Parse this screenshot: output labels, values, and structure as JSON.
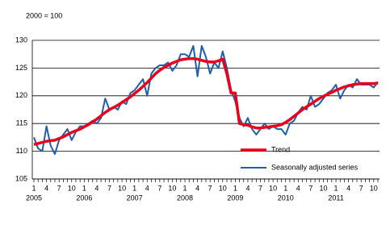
{
  "chart_data": {
    "type": "line",
    "annotation": "2000 = 100",
    "categories": [
      "1",
      null,
      null,
      "4",
      null,
      null,
      "7",
      null,
      null,
      "10",
      null,
      null,
      "1",
      null,
      null,
      "4",
      null,
      null,
      "7",
      null,
      null,
      "10",
      null,
      null,
      "1",
      null,
      null,
      "4",
      null,
      null,
      "7",
      null,
      null,
      "10",
      null,
      null,
      "1",
      null,
      null,
      "4",
      null,
      null,
      "7",
      null,
      null,
      "10",
      null,
      null,
      "1",
      null,
      null,
      "4",
      null,
      null,
      "7",
      null,
      null,
      "10",
      null,
      null,
      "1",
      null,
      null,
      "4",
      null,
      null,
      "7",
      null,
      null,
      "10",
      null,
      null,
      "1",
      null,
      null,
      "4",
      null,
      null,
      "7",
      null,
      null,
      "10",
      null
    ],
    "category_years": [
      "2005",
      null,
      null,
      null,
      null,
      null,
      null,
      null,
      null,
      null,
      null,
      null,
      "2006",
      null,
      null,
      null,
      null,
      null,
      null,
      null,
      null,
      null,
      null,
      null,
      "2007",
      null,
      null,
      null,
      null,
      null,
      null,
      null,
      null,
      null,
      null,
      null,
      "2008",
      null,
      null,
      null,
      null,
      null,
      null,
      null,
      null,
      null,
      null,
      null,
      "2009",
      null,
      null,
      null,
      null,
      null,
      null,
      null,
      null,
      null,
      null,
      null,
      "2010",
      null,
      null,
      null,
      null,
      null,
      null,
      null,
      null,
      null,
      null,
      null,
      "2011",
      null,
      null,
      null,
      null,
      null,
      null,
      null,
      null,
      null,
      null
    ],
    "series": [
      {
        "name": "Trend",
        "color": "#e8001c",
        "values": [
          111.2,
          111.4,
          111.6,
          111.8,
          111.9,
          112,
          112.3,
          112.6,
          113,
          113.4,
          113.7,
          114,
          114.4,
          114.8,
          115.3,
          115.8,
          116.4,
          117,
          117.5,
          117.9,
          118.3,
          118.8,
          119.3,
          119.8,
          120.4,
          121,
          121.7,
          122.4,
          123.2,
          124,
          124.6,
          125.1,
          125.5,
          125.9,
          126.2,
          126.5,
          126.6,
          126.7,
          126.7,
          126.6,
          126.4,
          126.2,
          126.1,
          126.1,
          126.3,
          126.6,
          124,
          120.5,
          120.5,
          115,
          114.8,
          114.7,
          114.4,
          114.2,
          114.2,
          114.3,
          114.4,
          114.5,
          114.6,
          114.8,
          115.2,
          115.7,
          116.3,
          116.9,
          117.5,
          118,
          118.5,
          119,
          119.5,
          119.9,
          120.3,
          120.6,
          121,
          121.3,
          121.6,
          121.8,
          122,
          122.1,
          122.2,
          122.2,
          122.2,
          122.2,
          122.3
        ]
      },
      {
        "name": "Seasonally adjusted series",
        "color": "#1f5fa8",
        "values": [
          112.5,
          110.5,
          110,
          114.5,
          111,
          109.5,
          112,
          113,
          114,
          112,
          113.5,
          114.5,
          114.5,
          115,
          115.5,
          115,
          116,
          119.5,
          117.5,
          118,
          117.5,
          119,
          118.5,
          120.5,
          121,
          122,
          123,
          120,
          124,
          125,
          125.5,
          125.5,
          126,
          124.5,
          125.5,
          127.5,
          127.5,
          127,
          129,
          123.5,
          129,
          127,
          124,
          126,
          125,
          128,
          125,
          121,
          119,
          116,
          114.5,
          116,
          114,
          113,
          114,
          115,
          114,
          114.5,
          114,
          114,
          113,
          115,
          115.5,
          117,
          118,
          117.5,
          120,
          118,
          118.5,
          119.5,
          120.5,
          121,
          122,
          119.5,
          121,
          122,
          121.5,
          123,
          122,
          122,
          122,
          121.5,
          122.5
        ]
      }
    ],
    "ylim": [
      105,
      130
    ],
    "yticks": [
      105,
      110,
      115,
      120,
      125,
      130
    ],
    "grid": true,
    "legend": "lower right"
  }
}
